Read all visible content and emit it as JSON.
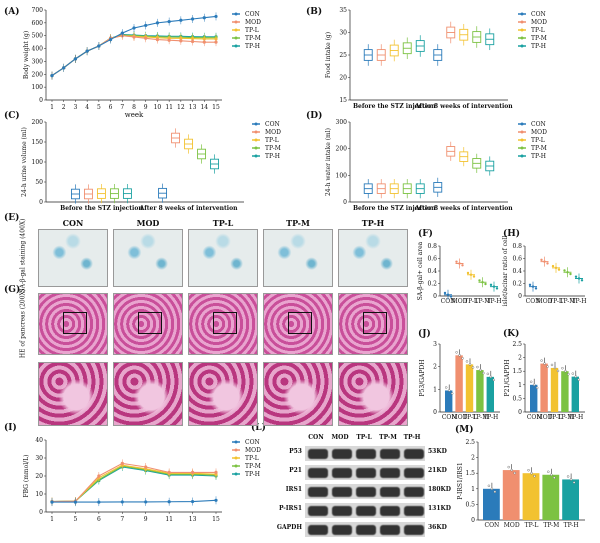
{
  "panels": {
    "A": "(A)",
    "B": "(B)",
    "C": "(C)",
    "D": "(D)",
    "E": "(E)",
    "F": "(F)",
    "G": "(G)",
    "H": "(H)",
    "I": "(I)",
    "J": "(J)",
    "K": "(K)",
    "L": "(L)",
    "M": "(M)"
  },
  "groups": [
    "CON",
    "MOD",
    "TP-L",
    "TP-M",
    "TP-H"
  ],
  "colors": {
    "CON": "#2b7bba",
    "MOD": "#f08f6f",
    "TP-L": "#f2c230",
    "TP-M": "#7cc242",
    "TP-H": "#1aa1a1"
  },
  "images": {
    "E_label": "SA-β-gal staining (400X)",
    "G_label": "HE of pancreas (200X)"
  },
  "blot": {
    "bands": [
      "P53",
      "P21",
      "IRS1",
      "P-IRS1",
      "GAPDH"
    ],
    "kd": [
      "53KD",
      "21KD",
      "180KD",
      "131KD",
      "36KD"
    ]
  },
  "chart_data": [
    {
      "panel": "A",
      "type": "line",
      "xlabel": "week",
      "ylabel": "Body weight (g)",
      "ylim": [
        0,
        700
      ],
      "yticks": [
        0,
        100,
        200,
        300,
        400,
        500,
        600,
        700
      ],
      "x": [
        1,
        2,
        3,
        4,
        5,
        6,
        7,
        8,
        9,
        10,
        11,
        12,
        13,
        14,
        15
      ],
      "series": [
        {
          "name": "CON",
          "values": [
            190,
            250,
            320,
            380,
            420,
            470,
            520,
            560,
            580,
            600,
            610,
            620,
            630,
            640,
            650
          ]
        },
        {
          "name": "MOD",
          "values": [
            190,
            250,
            320,
            380,
            420,
            480,
            500,
            490,
            480,
            470,
            465,
            460,
            455,
            450,
            450
          ]
        },
        {
          "name": "TP-L",
          "values": [
            190,
            250,
            320,
            380,
            420,
            480,
            500,
            495,
            490,
            485,
            480,
            480,
            478,
            475,
            475
          ]
        },
        {
          "name": "TP-M",
          "values": [
            190,
            250,
            320,
            380,
            420,
            480,
            505,
            500,
            495,
            492,
            490,
            488,
            486,
            485,
            485
          ]
        },
        {
          "name": "TP-H",
          "values": [
            190,
            250,
            320,
            380,
            420,
            480,
            510,
            505,
            500,
            498,
            495,
            495,
            493,
            492,
            492
          ]
        }
      ]
    },
    {
      "panel": "B",
      "type": "box",
      "ylabel": "Food intake (g)",
      "ylim": [
        15,
        35
      ],
      "yticks": [
        15,
        20,
        25,
        30,
        35
      ],
      "categories": [
        "Before the STZ injection",
        "After 8 weeks of intervention"
      ],
      "series": [
        {
          "name": "CON",
          "values": [
            25,
            25
          ]
        },
        {
          "name": "MOD",
          "values": [
            25,
            30
          ]
        },
        {
          "name": "TP-L",
          "values": [
            26,
            29.5
          ]
        },
        {
          "name": "TP-M",
          "values": [
            26.5,
            29
          ]
        },
        {
          "name": "TP-H",
          "values": [
            27,
            28.5
          ]
        }
      ]
    },
    {
      "panel": "C",
      "type": "box",
      "ylabel": "24-h urine volume (ml)",
      "ylim": [
        0,
        200
      ],
      "yticks": [
        0,
        50,
        100,
        150,
        200
      ],
      "categories": [
        "Before the STZ injection",
        "After 8 weeks of intervention"
      ],
      "series": [
        {
          "name": "CON",
          "values": [
            20,
            22
          ]
        },
        {
          "name": "MOD",
          "values": [
            20,
            160
          ]
        },
        {
          "name": "TP-L",
          "values": [
            21,
            145
          ]
        },
        {
          "name": "TP-M",
          "values": [
            21,
            120
          ]
        },
        {
          "name": "TP-H",
          "values": [
            21,
            95
          ]
        }
      ]
    },
    {
      "panel": "D",
      "type": "box",
      "ylabel": "24-h water intake (ml)",
      "ylim": [
        0,
        300
      ],
      "yticks": [
        0,
        100,
        200,
        300
      ],
      "categories": [
        "Before the STZ injection",
        "After 8 weeks of intervention"
      ],
      "series": [
        {
          "name": "CON",
          "values": [
            50,
            55
          ]
        },
        {
          "name": "MOD",
          "values": [
            50,
            190
          ]
        },
        {
          "name": "TP-L",
          "values": [
            50,
            170
          ]
        },
        {
          "name": "TP-M",
          "values": [
            50,
            145
          ]
        },
        {
          "name": "TP-H",
          "values": [
            50,
            135
          ]
        }
      ]
    },
    {
      "panel": "F",
      "type": "scatter",
      "ylabel": "SA-β-gal+ cell area",
      "ylim": [
        0,
        0.8
      ],
      "yticks": [
        0.0,
        0.2,
        0.4,
        0.6,
        0.8
      ],
      "categories": [
        "CON",
        "MOD",
        "TP-L",
        "TP-M",
        "TP-H"
      ],
      "values": [
        0.02,
        0.52,
        0.34,
        0.22,
        0.15
      ]
    },
    {
      "panel": "H",
      "type": "scatter",
      "ylabel": "islet/acinar ratio of cell",
      "ylim": [
        0,
        0.8
      ],
      "yticks": [
        0.0,
        0.2,
        0.4,
        0.6,
        0.8
      ],
      "categories": [
        "CON",
        "MOD",
        "TP-L",
        "TP-M",
        "TP-H"
      ],
      "values": [
        0.15,
        0.55,
        0.45,
        0.38,
        0.28
      ]
    },
    {
      "panel": "I",
      "type": "line",
      "xlabel": "",
      "ylabel": "FBG (mmol/L)",
      "ylim": [
        0,
        40
      ],
      "yticks": [
        0,
        10,
        20,
        30,
        40
      ],
      "x": [
        1,
        5,
        6,
        7,
        9,
        11,
        13,
        15
      ],
      "series": [
        {
          "name": "CON",
          "values": [
            5.5,
            5.5,
            5.5,
            5.6,
            5.6,
            5.7,
            5.8,
            6.5
          ]
        },
        {
          "name": "MOD",
          "values": [
            5.8,
            6,
            20,
            27,
            25,
            22,
            22,
            22
          ]
        },
        {
          "name": "TP-L",
          "values": [
            5.8,
            6,
            19,
            26,
            24,
            21.5,
            21.5,
            21
          ]
        },
        {
          "name": "TP-M",
          "values": [
            5.8,
            6,
            18,
            25.5,
            23.5,
            21,
            21,
            20.5
          ]
        },
        {
          "name": "TP-H",
          "values": [
            5.8,
            6,
            17.5,
            25,
            23,
            20.5,
            20.5,
            20
          ]
        }
      ]
    },
    {
      "panel": "J",
      "type": "bar",
      "ylabel": "P53/GAPDH",
      "ylim": [
        0,
        3
      ],
      "yticks": [
        0,
        1,
        2,
        3
      ],
      "categories": [
        "CON",
        "MOD",
        "TP-L",
        "TP-M",
        "TP-H"
      ],
      "values": [
        0.95,
        2.5,
        2.1,
        1.85,
        1.55
      ]
    },
    {
      "panel": "K",
      "type": "bar",
      "ylabel": "P21/GAPDH",
      "ylim": [
        0,
        2.5
      ],
      "yticks": [
        0.0,
        0.5,
        1.0,
        1.5,
        2.0,
        2.5
      ],
      "categories": [
        "CON",
        "MOD",
        "TP-L",
        "TP-M",
        "TP-H"
      ],
      "values": [
        1.0,
        1.78,
        1.62,
        1.5,
        1.3
      ]
    },
    {
      "panel": "M",
      "type": "bar",
      "ylabel": "P-IRS1/IRS1",
      "ylim": [
        0,
        2.5
      ],
      "yticks": [
        0.0,
        0.5,
        1.0,
        1.5,
        2.0,
        2.5
      ],
      "categories": [
        "CON",
        "MOD",
        "TP-L",
        "TP-M",
        "TP-H"
      ],
      "values": [
        1.0,
        1.6,
        1.5,
        1.45,
        1.3
      ]
    }
  ]
}
